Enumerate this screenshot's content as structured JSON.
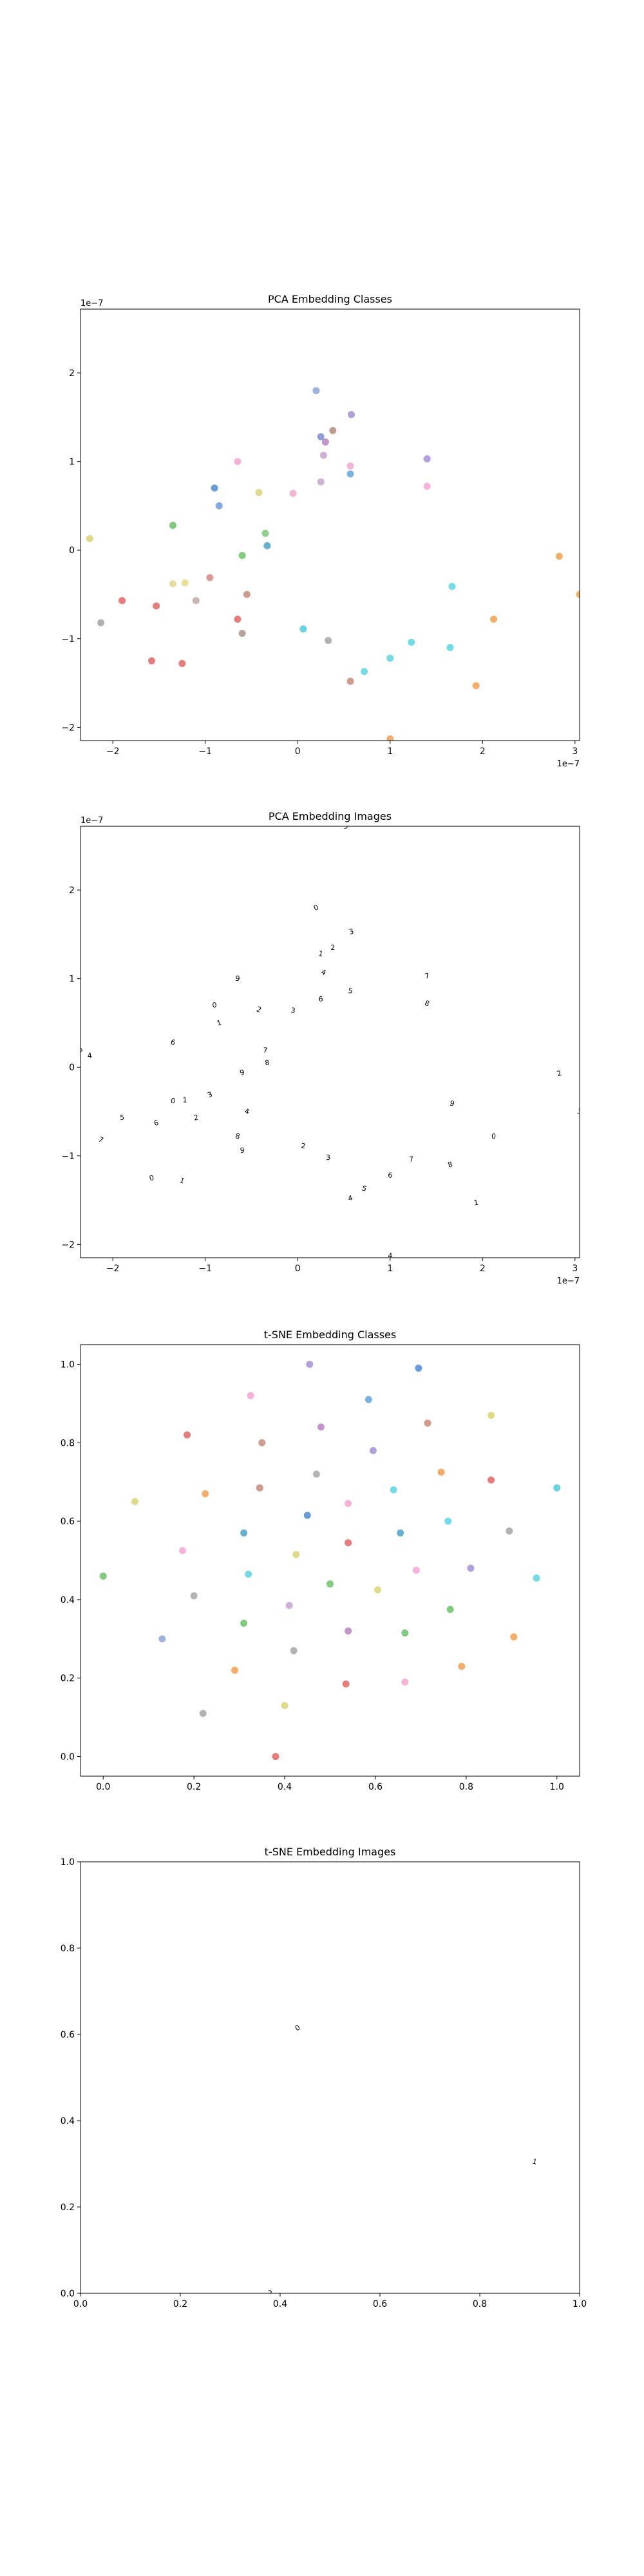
{
  "chart_data": [
    {
      "type": "scatter",
      "title": "PCA Embedding Classes",
      "xlabel": "",
      "ylabel": "",
      "xlim": [
        -2.35,
        3.05
      ],
      "ylim": [
        -2.15,
        2.72
      ],
      "x_ticks": [
        -2,
        -1,
        0,
        1,
        2,
        3
      ],
      "x_tick_labels": [
        "−2",
        "−1",
        "0",
        "1",
        "2",
        "3"
      ],
      "y_ticks": [
        -2,
        -1,
        0,
        1,
        2
      ],
      "y_tick_labels": [
        "−2",
        "−1",
        "0",
        "1",
        "2"
      ],
      "x_offset_label": "1e−7",
      "y_offset_label": "1e−7",
      "grid": false,
      "points": [
        {
          "x": 0.2,
          "y": 1.8,
          "color": "#8fa3d6"
        },
        {
          "x": 0.25,
          "y": 1.28,
          "color": "#7b8bd0"
        },
        {
          "x": 0.3,
          "y": 1.22,
          "color": "#b784c0"
        },
        {
          "x": 0.38,
          "y": 1.35,
          "color": "#b58a7b"
        },
        {
          "x": 0.58,
          "y": 1.53,
          "color": "#a58fd3"
        },
        {
          "x": 0.28,
          "y": 1.07,
          "color": "#c6a3d0"
        },
        {
          "x": 0.57,
          "y": 0.95,
          "color": "#f0a8cf"
        },
        {
          "x": 0.57,
          "y": 0.86,
          "color": "#64a6d9"
        },
        {
          "x": 0.25,
          "y": 0.77,
          "color": "#c9a3cf"
        },
        {
          "x": 1.4,
          "y": 1.03,
          "color": "#a58fd3"
        },
        {
          "x": 1.4,
          "y": 0.72,
          "color": "#f4a6d0"
        },
        {
          "x": -0.65,
          "y": 1.0,
          "color": "#f4a6d0"
        },
        {
          "x": -0.9,
          "y": 0.7,
          "color": "#4f8cd4"
        },
        {
          "x": -0.85,
          "y": 0.5,
          "color": "#6f9bd8"
        },
        {
          "x": -0.42,
          "y": 0.65,
          "color": "#d7d27a"
        },
        {
          "x": -0.05,
          "y": 0.64,
          "color": "#f2a8c9"
        },
        {
          "x": -2.25,
          "y": 0.13,
          "color": "#d9d476"
        },
        {
          "x": -1.35,
          "y": 0.28,
          "color": "#6cc16a"
        },
        {
          "x": -0.35,
          "y": 0.19,
          "color": "#7dc47a"
        },
        {
          "x": -0.6,
          "y": -0.06,
          "color": "#6cc16a"
        },
        {
          "x": -0.33,
          "y": 0.05,
          "color": "#4fa3c7"
        },
        {
          "x": -1.35,
          "y": -0.38,
          "color": "#e8d68e"
        },
        {
          "x": -1.22,
          "y": -0.37,
          "color": "#e4d98a"
        },
        {
          "x": -1.1,
          "y": -0.57,
          "color": "#bda9a3"
        },
        {
          "x": -0.95,
          "y": -0.31,
          "color": "#d08a8a"
        },
        {
          "x": -0.55,
          "y": -0.5,
          "color": "#c48b7b"
        },
        {
          "x": -1.9,
          "y": -0.57,
          "color": "#e06666"
        },
        {
          "x": -1.53,
          "y": -0.63,
          "color": "#e06666"
        },
        {
          "x": -2.13,
          "y": -0.82,
          "color": "#a3a3a3"
        },
        {
          "x": -0.65,
          "y": -0.78,
          "color": "#e06666"
        },
        {
          "x": -0.6,
          "y": -0.94,
          "color": "#a8948c"
        },
        {
          "x": -1.58,
          "y": -1.25,
          "color": "#e06666"
        },
        {
          "x": -1.25,
          "y": -1.28,
          "color": "#e06666"
        },
        {
          "x": 0.06,
          "y": -0.89,
          "color": "#4ecbd9"
        },
        {
          "x": 0.33,
          "y": -1.02,
          "color": "#a6a6a6"
        },
        {
          "x": 0.57,
          "y": -1.48,
          "color": "#c98a7d"
        },
        {
          "x": 0.72,
          "y": -1.37,
          "color": "#5dd3e0"
        },
        {
          "x": 1.0,
          "y": -1.22,
          "color": "#5dd3e0"
        },
        {
          "x": 1.23,
          "y": -1.04,
          "color": "#5dd3e0"
        },
        {
          "x": 1.65,
          "y": -1.1,
          "color": "#5dd3e0"
        },
        {
          "x": 1.67,
          "y": -0.41,
          "color": "#5dd3e0"
        },
        {
          "x": 2.12,
          "y": -0.78,
          "color": "#f0a050"
        },
        {
          "x": 1.93,
          "y": -1.53,
          "color": "#f0a050"
        },
        {
          "x": 2.83,
          "y": -0.07,
          "color": "#f0a050"
        },
        {
          "x": 3.05,
          "y": -0.5,
          "color": "#f0a050"
        },
        {
          "x": 1.0,
          "y": -2.13,
          "color": "#f0a050"
        }
      ]
    },
    {
      "type": "scatter",
      "title": "PCA Embedding Images",
      "xlabel": "",
      "ylabel": "",
      "xlim": [
        -2.35,
        3.05
      ],
      "ylim": [
        -2.15,
        2.72
      ],
      "x_ticks": [
        -2,
        -1,
        0,
        1,
        2,
        3
      ],
      "x_tick_labels": [
        "−2",
        "−1",
        "0",
        "1",
        "2",
        "3"
      ],
      "y_ticks": [
        -2,
        -1,
        0,
        1,
        2
      ],
      "y_tick_labels": [
        "−2",
        "−1",
        "0",
        "1",
        "2"
      ],
      "x_offset_label": "1e−7",
      "y_offset_label": "1e−7",
      "grid": false,
      "marker": "tiny digit image",
      "points": [
        {
          "x": 0.2,
          "y": 1.8
        },
        {
          "x": 0.25,
          "y": 1.28
        },
        {
          "x": 0.38,
          "y": 1.35
        },
        {
          "x": 0.58,
          "y": 1.53
        },
        {
          "x": 0.28,
          "y": 1.07
        },
        {
          "x": 0.57,
          "y": 0.86
        },
        {
          "x": 0.25,
          "y": 0.77
        },
        {
          "x": 1.4,
          "y": 1.03
        },
        {
          "x": 1.4,
          "y": 0.72
        },
        {
          "x": -0.65,
          "y": 1.0
        },
        {
          "x": -0.9,
          "y": 0.7
        },
        {
          "x": -0.85,
          "y": 0.5
        },
        {
          "x": -0.42,
          "y": 0.65
        },
        {
          "x": -0.05,
          "y": 0.64
        },
        {
          "x": -2.25,
          "y": 0.13
        },
        {
          "x": -2.35,
          "y": 0.2
        },
        {
          "x": -1.35,
          "y": 0.28
        },
        {
          "x": -0.35,
          "y": 0.19
        },
        {
          "x": -0.33,
          "y": 0.05
        },
        {
          "x": -0.6,
          "y": -0.06
        },
        {
          "x": -1.35,
          "y": -0.38
        },
        {
          "x": -1.22,
          "y": -0.37
        },
        {
          "x": -1.1,
          "y": -0.57
        },
        {
          "x": -0.95,
          "y": -0.31
        },
        {
          "x": -0.55,
          "y": -0.5
        },
        {
          "x": -1.9,
          "y": -0.57
        },
        {
          "x": -1.53,
          "y": -0.63
        },
        {
          "x": -2.13,
          "y": -0.82
        },
        {
          "x": -0.65,
          "y": -0.78
        },
        {
          "x": -0.6,
          "y": -0.94
        },
        {
          "x": -1.58,
          "y": -1.25
        },
        {
          "x": -1.25,
          "y": -1.28
        },
        {
          "x": 0.06,
          "y": -0.89
        },
        {
          "x": 0.33,
          "y": -1.02
        },
        {
          "x": 0.57,
          "y": -1.48
        },
        {
          "x": 0.72,
          "y": -1.37
        },
        {
          "x": 1.0,
          "y": -1.22
        },
        {
          "x": 1.23,
          "y": -1.04
        },
        {
          "x": 1.65,
          "y": -1.1
        },
        {
          "x": 1.67,
          "y": -0.41
        },
        {
          "x": 2.12,
          "y": -0.78
        },
        {
          "x": 1.93,
          "y": -1.53
        },
        {
          "x": 2.83,
          "y": -0.07
        },
        {
          "x": 3.05,
          "y": -0.5
        },
        {
          "x": 1.0,
          "y": -2.13
        },
        {
          "x": 0.52,
          "y": 2.72
        }
      ]
    },
    {
      "type": "scatter",
      "title": "t-SNE Embedding Classes",
      "xlabel": "",
      "ylabel": "",
      "xlim": [
        -0.05,
        1.05
      ],
      "ylim": [
        -0.05,
        1.05
      ],
      "x_ticks": [
        0.0,
        0.2,
        0.4,
        0.6,
        0.8,
        1.0
      ],
      "x_tick_labels": [
        "0.0",
        "0.2",
        "0.4",
        "0.6",
        "0.8",
        "1.0"
      ],
      "y_ticks": [
        0.0,
        0.2,
        0.4,
        0.6,
        0.8,
        1.0
      ],
      "y_tick_labels": [
        "0.0",
        "0.2",
        "0.4",
        "0.6",
        "0.8",
        "1.0"
      ],
      "grid": false,
      "points": [
        {
          "x": 0.455,
          "y": 1.0,
          "color": "#a58fd3"
        },
        {
          "x": 0.695,
          "y": 0.99,
          "color": "#4f8cd4"
        },
        {
          "x": 0.325,
          "y": 0.92,
          "color": "#f4a6d0"
        },
        {
          "x": 0.585,
          "y": 0.91,
          "color": "#64a6d9"
        },
        {
          "x": 0.855,
          "y": 0.87,
          "color": "#d9d476"
        },
        {
          "x": 0.48,
          "y": 0.84,
          "color": "#b784c0"
        },
        {
          "x": 0.715,
          "y": 0.85,
          "color": "#c98a7d"
        },
        {
          "x": 0.185,
          "y": 0.82,
          "color": "#e06666"
        },
        {
          "x": 0.35,
          "y": 0.8,
          "color": "#c48b7b"
        },
        {
          "x": 0.595,
          "y": 0.78,
          "color": "#a58fd3"
        },
        {
          "x": 0.07,
          "y": 0.65,
          "color": "#d9d476"
        },
        {
          "x": 0.225,
          "y": 0.67,
          "color": "#f0a050"
        },
        {
          "x": 0.345,
          "y": 0.685,
          "color": "#c48b7b"
        },
        {
          "x": 0.47,
          "y": 0.72,
          "color": "#a6a6a6"
        },
        {
          "x": 0.745,
          "y": 0.725,
          "color": "#f0a050"
        },
        {
          "x": 0.855,
          "y": 0.705,
          "color": "#e06666"
        },
        {
          "x": 1.0,
          "y": 0.685,
          "color": "#4ecbd9"
        },
        {
          "x": 0.64,
          "y": 0.68,
          "color": "#5dd3e0"
        },
        {
          "x": 0.54,
          "y": 0.645,
          "color": "#f4a6d0"
        },
        {
          "x": 0.45,
          "y": 0.615,
          "color": "#4f8cd4"
        },
        {
          "x": 0.31,
          "y": 0.57,
          "color": "#4fa3c7"
        },
        {
          "x": 0.175,
          "y": 0.525,
          "color": "#f4a6d0"
        },
        {
          "x": 0.0,
          "y": 0.46,
          "color": "#6cc16a"
        },
        {
          "x": 0.54,
          "y": 0.545,
          "color": "#e06666"
        },
        {
          "x": 0.425,
          "y": 0.515,
          "color": "#d9d476"
        },
        {
          "x": 0.655,
          "y": 0.57,
          "color": "#4fa3c7"
        },
        {
          "x": 0.76,
          "y": 0.6,
          "color": "#5dd3e0"
        },
        {
          "x": 0.895,
          "y": 0.575,
          "color": "#a6a6a6"
        },
        {
          "x": 0.32,
          "y": 0.465,
          "color": "#5dd3e0"
        },
        {
          "x": 0.2,
          "y": 0.41,
          "color": "#a6a6a6"
        },
        {
          "x": 0.5,
          "y": 0.44,
          "color": "#6cc16a"
        },
        {
          "x": 0.605,
          "y": 0.425,
          "color": "#d9d476"
        },
        {
          "x": 0.69,
          "y": 0.475,
          "color": "#f4a6d0"
        },
        {
          "x": 0.81,
          "y": 0.48,
          "color": "#a58fd3"
        },
        {
          "x": 0.955,
          "y": 0.455,
          "color": "#5dd3e0"
        },
        {
          "x": 0.13,
          "y": 0.3,
          "color": "#8fa3d6"
        },
        {
          "x": 0.41,
          "y": 0.385,
          "color": "#c6a3d0"
        },
        {
          "x": 0.31,
          "y": 0.34,
          "color": "#6cc16a"
        },
        {
          "x": 0.54,
          "y": 0.32,
          "color": "#b784c0"
        },
        {
          "x": 0.665,
          "y": 0.315,
          "color": "#6cc16a"
        },
        {
          "x": 0.765,
          "y": 0.375,
          "color": "#6cc16a"
        },
        {
          "x": 0.905,
          "y": 0.305,
          "color": "#f0a050"
        },
        {
          "x": 0.42,
          "y": 0.27,
          "color": "#a6a6a6"
        },
        {
          "x": 0.29,
          "y": 0.22,
          "color": "#f0a050"
        },
        {
          "x": 0.535,
          "y": 0.185,
          "color": "#e06666"
        },
        {
          "x": 0.665,
          "y": 0.19,
          "color": "#f4a6d0"
        },
        {
          "x": 0.79,
          "y": 0.23,
          "color": "#f0a050"
        },
        {
          "x": 0.22,
          "y": 0.11,
          "color": "#a6a6a6"
        },
        {
          "x": 0.4,
          "y": 0.13,
          "color": "#d9d476"
        },
        {
          "x": 0.38,
          "y": 0.0,
          "color": "#e06666"
        }
      ]
    },
    {
      "type": "scatter",
      "title": "t-SNE Embedding Images",
      "xlabel": "",
      "ylabel": "",
      "xlim": [
        0.0,
        1.0
      ],
      "ylim": [
        0.0,
        1.0
      ],
      "x_ticks": [
        0.0,
        0.2,
        0.4,
        0.6,
        0.8,
        1.0
      ],
      "x_tick_labels": [
        "0.0",
        "0.2",
        "0.4",
        "0.6",
        "0.8",
        "1.0"
      ],
      "y_ticks": [
        0.0,
        0.2,
        0.4,
        0.6,
        0.8,
        1.0
      ],
      "y_tick_labels": [
        "0.0",
        "0.2",
        "0.4",
        "0.6",
        "0.8",
        "1.0"
      ],
      "grid": false,
      "marker": "tiny digit image",
      "points": [
        {
          "x": 0.435,
          "y": 0.615
        },
        {
          "x": 0.91,
          "y": 0.305
        },
        {
          "x": 0.38,
          "y": 0.0
        }
      ]
    }
  ]
}
